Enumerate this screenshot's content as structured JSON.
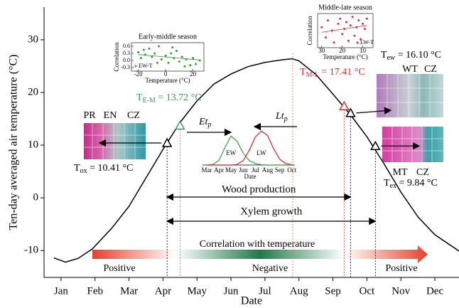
{
  "chart_data": {
    "type": "line",
    "xlabel": "Date",
    "ylabel": "Ten-day averaged air temperature (°C)",
    "xlim": [
      0.5,
      12.71
    ],
    "ylim": [
      -15.1,
      36.2
    ],
    "xticks": [
      {
        "value": 1,
        "label": "Jan"
      },
      {
        "value": 2,
        "label": "Feb"
      },
      {
        "value": 3,
        "label": "Mar"
      },
      {
        "value": 4,
        "label": "Apr"
      },
      {
        "value": 5,
        "label": "May"
      },
      {
        "value": 6,
        "label": "Jun"
      },
      {
        "value": 7,
        "label": "Jul"
      },
      {
        "value": 8,
        "label": "Aug"
      },
      {
        "value": 9,
        "label": "Sep"
      },
      {
        "value": 10,
        "label": "Oct"
      },
      {
        "value": 11,
        "label": "Nov"
      },
      {
        "value": 12,
        "label": "Dec"
      }
    ],
    "yticks": [
      -10,
      0,
      10,
      20,
      30
    ],
    "color": "#000000",
    "x": [
      0.79,
      1.13,
      1.5,
      1.92,
      2.5,
      3,
      3.5,
      4,
      4.5,
      5,
      5.5,
      6,
      6.5,
      7,
      7.5,
      7.8,
      8,
      8.5,
      9,
      9.5,
      10,
      10.5,
      11,
      11.5,
      12,
      12.71
    ],
    "values": [
      -11.4,
      -12.2,
      -11.5,
      -9.7,
      -5.7,
      -1.6,
      3.8,
      9.2,
      14.3,
      18.4,
      21.6,
      23.5,
      24.9,
      25.7,
      26.2,
      26.4,
      26.0,
      23.4,
      19.7,
      15.9,
      11.6,
      6.5,
      1.1,
      -3.6,
      -7.0,
      -10.1
    ],
    "markers": [
      {
        "symbol": "T",
        "sub": "ox",
        "text": " = 10.41 °C",
        "x": 4.12,
        "value": 10.41,
        "color": "#000000"
      },
      {
        "symbol": "T",
        "sub": "E-M",
        "text": " = 13.72 °C",
        "x": 4.5,
        "value": 13.72,
        "color": "#3a9a5a"
      },
      {
        "symbol": "T",
        "sub": "M-L",
        "text": " = 17.41 °C",
        "x": 9.33,
        "value": 17.41,
        "color": "#e03030"
      },
      {
        "symbol": "T",
        "sub": "ew",
        "text": " = 16.10 °C",
        "x": 9.52,
        "value": 16.1,
        "color": "#000000"
      },
      {
        "symbol": "T",
        "sub": "ex",
        "text": " = 9.84 °C",
        "x": 10.25,
        "value": 9.84,
        "color": "#000000"
      }
    ],
    "spans": {
      "wood": "Wood production",
      "xylem": "Xylem growth"
    },
    "gradient": {
      "title": "Correlation with temperature",
      "labels": [
        "Positive",
        "Negative",
        "Positive"
      ],
      "colors": [
        "#e8402a",
        "#ffffff",
        "#1e7a4a",
        "#ffffff",
        "#e8402a"
      ]
    },
    "micrographs": [
      [
        "PR",
        "EN",
        "CZ"
      ],
      [
        "WT",
        "CZ"
      ],
      [
        "MT",
        "CZ"
      ]
    ],
    "phases": [
      {
        "main": "Et",
        "sub": "p"
      },
      {
        "main": "Lt",
        "sub": "p"
      }
    ],
    "distribution": {
      "type": "line",
      "xlabel": "Date",
      "categories": [
        "Mar",
        "Apr",
        "May",
        "Jun",
        "Jul",
        "Aug",
        "Sep",
        "Oct"
      ],
      "x": [
        0,
        0.5,
        1,
        1.5,
        2,
        2.5,
        3,
        3.5,
        4,
        4.5,
        5,
        5.5,
        6,
        6.5,
        7
      ],
      "ylim": [
        0,
        1.2
      ],
      "series": [
        {
          "name": "EW",
          "color": "#3a9a3a",
          "values": [
            0,
            0.02,
            0.15,
            0.6,
            0.98,
            0.8,
            0.4,
            0.15,
            0.05,
            0.01,
            0,
            0,
            0,
            0,
            0
          ]
        },
        {
          "name": "LW",
          "color": "#e02020",
          "values": [
            0,
            0,
            0,
            0,
            0,
            0.02,
            0.15,
            0.5,
            0.95,
            1.15,
            1.0,
            0.55,
            0.2,
            0.05,
            0.01
          ]
        }
      ]
    },
    "insets": [
      {
        "type": "scatter",
        "title": "Early-middle season",
        "xlabel": "Temperature (°C)",
        "ylabel": "Correlation",
        "legend": "EW-T",
        "color": "#3a9a3a",
        "xlim": [
          -25,
          28
        ],
        "ylim": [
          -0.45,
          0.75
        ],
        "xticks": [
          -20,
          0,
          20
        ],
        "yticks": [
          -0.3,
          {
            "value": 0,
            "label": "0.0"
          },
          0.3,
          0.6
        ],
        "x": [
          -20,
          -18,
          -15,
          -12,
          -10,
          -8,
          -5,
          -3,
          0,
          2,
          4,
          6,
          8,
          10,
          12,
          15,
          18,
          20,
          22,
          25,
          -16,
          -6,
          5,
          14
        ],
        "y": [
          0.35,
          0.1,
          0.25,
          0.5,
          0.15,
          0.3,
          0.6,
          0.05,
          0.2,
          -0.1,
          0.3,
          0.1,
          0.4,
          -0.05,
          0.15,
          0.05,
          -0.2,
          0.1,
          -0.15,
          0.0,
          0.45,
          -0.1,
          0.55,
          -0.25
        ],
        "trend": {
          "x": [
            -20,
            25
          ],
          "y": [
            0.25,
            0.02
          ]
        }
      },
      {
        "type": "scatter",
        "title": "Middle-late season",
        "xlabel": "Temperature (°C)",
        "ylabel": "Correlation",
        "legend": "LW-T",
        "color": "#e03030",
        "xlim": [
          32,
          5
        ],
        "ylim": [
          -0.5,
          0.5
        ],
        "xticks": [
          30,
          20,
          10
        ],
        "yticks": [],
        "x": [
          30,
          28,
          27,
          25,
          24,
          22,
          21,
          20,
          19,
          18,
          17,
          16,
          15,
          14,
          13,
          12,
          11,
          10,
          9,
          8
        ],
        "y": [
          0.1,
          -0.2,
          0.3,
          0.0,
          -0.35,
          0.2,
          0.35,
          -0.1,
          0.05,
          0.25,
          -0.3,
          0.15,
          0.4,
          -0.15,
          0.1,
          0.3,
          -0.25,
          0.2,
          0.05,
          0.35
        ],
        "trend": {
          "x": [
            30,
            8
          ],
          "y": [
            -0.05,
            0.15
          ]
        }
      }
    ]
  }
}
